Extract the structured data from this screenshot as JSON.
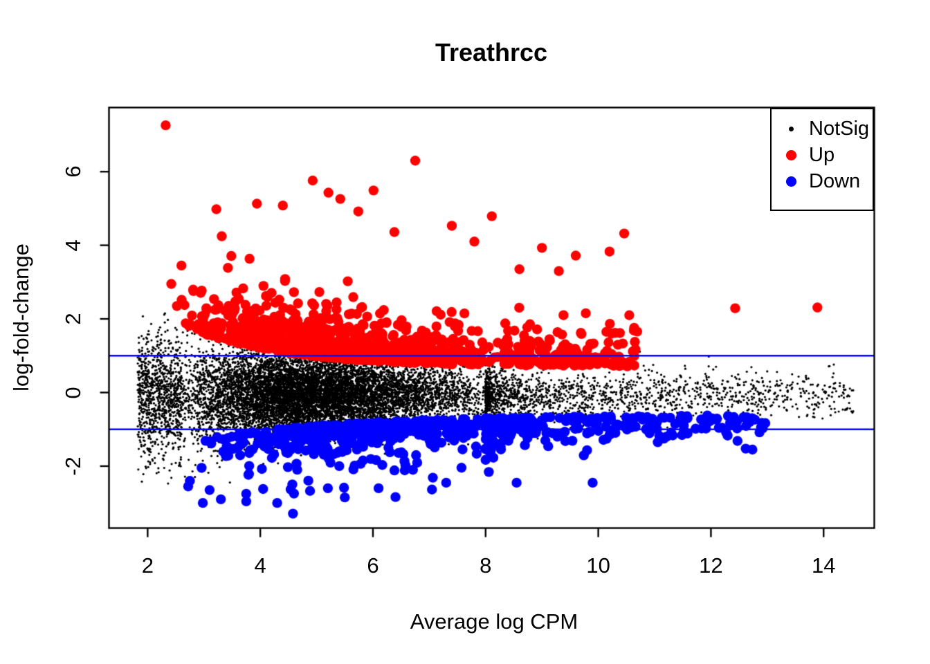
{
  "figure": {
    "background": "#FFFFFF"
  },
  "chart_data": {
    "type": "scatter",
    "title": "Treathrcc",
    "xlabel": "Average log CPM",
    "ylabel": "log-fold-change",
    "x_range": [
      1.314,
      14.9
    ],
    "y_range": [
      -3.683,
      7.742
    ],
    "x_ticks": [
      2,
      4,
      6,
      8,
      10,
      12,
      14
    ],
    "y_ticks": [
      -2,
      0,
      2,
      4,
      6
    ],
    "grid": "off",
    "box_color": "#000000",
    "hlines": {
      "values": [
        -1,
        1
      ],
      "color": "#0000FF",
      "width": 2.5
    },
    "legend": {
      "position": "top-right",
      "entries": [
        {
          "label": "NotSig",
          "color": "#000000",
          "marker_diameter": 7
        },
        {
          "label": "Up",
          "color": "#FF0000",
          "marker_diameter": 15
        },
        {
          "label": "Down",
          "color": "#0000FF",
          "marker_diameter": 15
        }
      ]
    },
    "seed": 1234,
    "series": [
      {
        "name": "NotSig",
        "color": "#000000",
        "radius": 1.6,
        "count": 12000,
        "x_mix": [
          {
            "w": 0.53,
            "type": "tri",
            "a": 2.25,
            "b": 8.35
          },
          {
            "w": 0.27,
            "type": "tri",
            "a": 2.5,
            "b": 6.4
          },
          {
            "w": 0.13,
            "type": "pow",
            "a": 8.0,
            "b": 14.55,
            "p": 2.2
          },
          {
            "w": 0.07,
            "type": "unif",
            "a": 1.82,
            "b": 2.6
          }
        ],
        "y_model": {
          "type": "normal",
          "mean": -0.06,
          "s0": 0.27,
          "s1": 0.62,
          "k": 3.5,
          "clip": [
            -2.6,
            2.15
          ]
        },
        "extra_points": [
          [
            14.4,
            -0.45
          ],
          [
            13.3,
            -0.41
          ],
          [
            13.06,
            -0.37
          ],
          [
            13.17,
            -0.19
          ],
          [
            12.5,
            -0.22
          ],
          [
            12.3,
            -0.39
          ],
          [
            11.96,
            0.71
          ],
          [
            12.09,
            0.7
          ],
          [
            10.9,
            0.62
          ],
          [
            11.4,
            -0.55
          ],
          [
            10.6,
            -0.75
          ],
          [
            10.75,
            0.4
          ]
        ]
      },
      {
        "name": "Up",
        "color": "#FF0000",
        "radius": 7.2,
        "count": 1150,
        "x_mix": [
          {
            "w": 0.78,
            "type": "tri",
            "a": 2.35,
            "b": 8.45
          },
          {
            "w": 0.15,
            "type": "pow",
            "a": 8.3,
            "b": 10.7,
            "p": 1.25
          },
          {
            "w": 0.07,
            "type": "tri",
            "a": 2.5,
            "b": 5.5
          }
        ],
        "y_model": {
          "type": "band",
          "sign": 1,
          "c0": 0.7,
          "c1": 1.6,
          "k": 1.7,
          "scale": 0.5,
          "s0": 0.55,
          "s1": 0.9,
          "k2": 2.8,
          "clip": [
            0.64,
            7.5
          ]
        },
        "extra_points": [
          [
            2.32,
            7.26
          ],
          [
            6.75,
            6.3
          ],
          [
            4.93,
            5.76
          ],
          [
            5.21,
            5.43
          ],
          [
            5.42,
            5.26
          ],
          [
            6.01,
            5.49
          ],
          [
            5.74,
            4.92
          ],
          [
            3.94,
            5.13
          ],
          [
            3.22,
            4.98
          ],
          [
            4.4,
            5.08
          ],
          [
            8.11,
            4.79
          ],
          [
            7.4,
            4.53
          ],
          [
            6.38,
            4.36
          ],
          [
            10.46,
            4.32
          ],
          [
            10.2,
            3.83
          ],
          [
            9.6,
            3.72
          ],
          [
            9.0,
            3.93
          ],
          [
            8.6,
            3.35
          ],
          [
            9.3,
            3.3
          ],
          [
            12.43,
            2.29
          ],
          [
            13.89,
            2.31
          ],
          [
            2.6,
            3.45
          ],
          [
            2.52,
            2.35
          ],
          [
            10.55,
            2.1
          ],
          [
            10.3,
            1.62
          ],
          [
            7.8,
            4.1
          ],
          [
            2.42,
            2.95
          ]
        ]
      },
      {
        "name": "Down",
        "color": "#0000FF",
        "radius": 7.2,
        "count": 680,
        "x_mix": [
          {
            "w": 0.6,
            "type": "tri",
            "a": 2.7,
            "b": 9.4
          },
          {
            "w": 0.3,
            "type": "pow",
            "a": 8.0,
            "b": 13.0,
            "p": 1.6
          },
          {
            "w": 0.1,
            "type": "tri",
            "a": 3.0,
            "b": 6.2
          }
        ],
        "y_model": {
          "type": "band",
          "sign": -1,
          "c0": -0.6,
          "c1": -0.97,
          "k": 2.6,
          "scale": 0.4,
          "s0": 0.6,
          "s1": 0.8,
          "k2": 3.2,
          "clip": [
            -3.32,
            -0.56
          ]
        },
        "extra_points": [
          [
            4.58,
            -3.29
          ],
          [
            2.98,
            -3.0
          ],
          [
            3.3,
            -2.9
          ],
          [
            6.4,
            -2.84
          ],
          [
            5.2,
            -2.6
          ],
          [
            7.3,
            -2.45
          ],
          [
            8.55,
            -2.45
          ],
          [
            9.9,
            -2.45
          ],
          [
            2.75,
            -2.4
          ],
          [
            4.05,
            -2.62
          ],
          [
            3.75,
            -2.75
          ],
          [
            5.5,
            -2.85
          ],
          [
            2.72,
            -2.55
          ],
          [
            11.91,
            -0.98
          ],
          [
            12.27,
            -1.09
          ],
          [
            12.34,
            -0.82
          ],
          [
            12.92,
            -0.97
          ],
          [
            4.3,
            -3.0
          ],
          [
            6.1,
            -2.6
          ],
          [
            3.1,
            -2.65
          ]
        ]
      }
    ]
  }
}
